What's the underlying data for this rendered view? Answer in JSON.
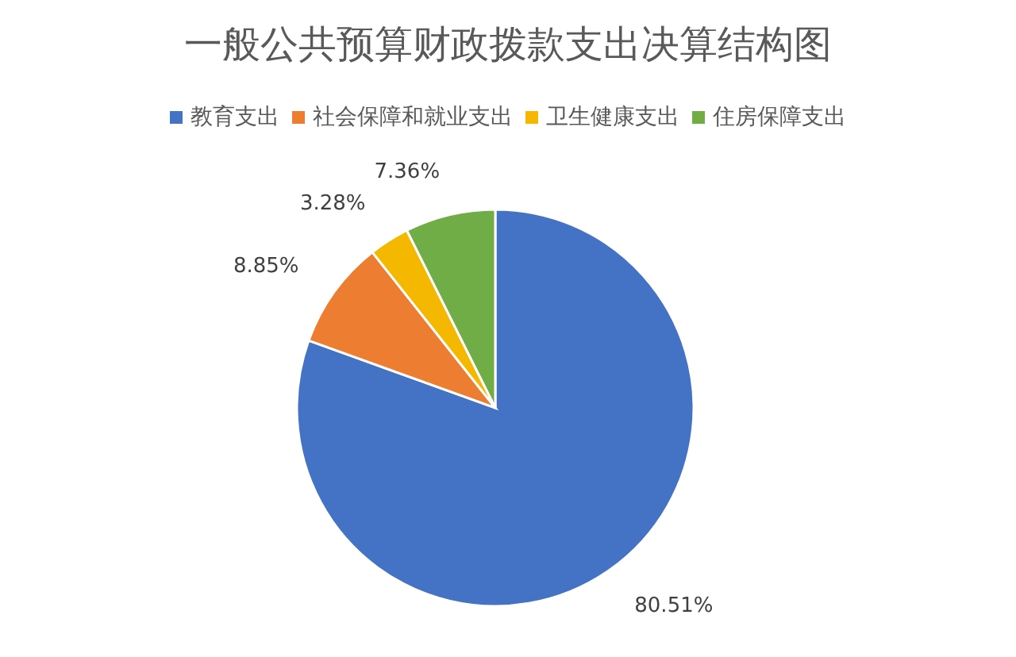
{
  "chart_data": {
    "type": "pie",
    "title": "一般公共预算财政拨款支出决算结构图",
    "categories": [
      "教育支出",
      "社会保障和就业支出",
      "卫生健康支出",
      "住房保障支出"
    ],
    "values": [
      80.51,
      8.85,
      3.28,
      7.36
    ],
    "colors": [
      "#4472c4",
      "#ed7d31",
      "#f4b800",
      "#70ad47"
    ],
    "value_labels": [
      "80.51%",
      "8.85%",
      "3.28%",
      "7.36%"
    ],
    "legend": "top"
  }
}
